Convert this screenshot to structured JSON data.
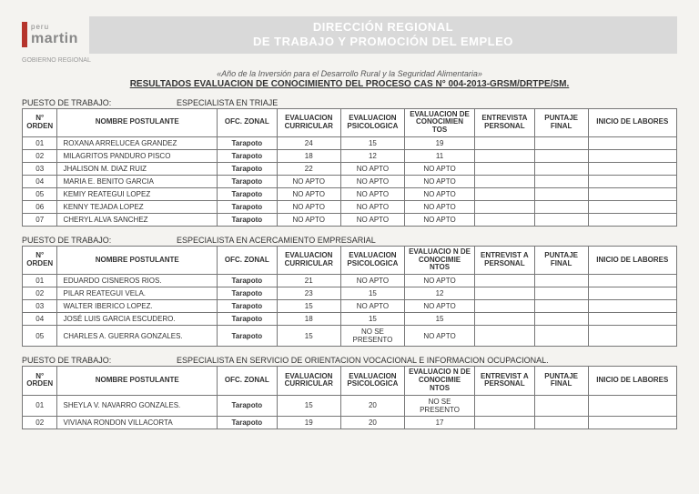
{
  "logo": {
    "small": "peru",
    "big": "martin",
    "sub": "GOBIERNO REGIONAL"
  },
  "banner": {
    "line1": "DIRECCIÓN REGIONAL",
    "line2": "DE TRABAJO Y PROMOCIÓN DEL EMPLEO"
  },
  "year_line": "«Año de la Inversión para el Desarrollo Rural y la Seguridad Alimentaria»",
  "results_line": "RESULTADOS  EVALUACION DE CONOCIMIENTO  DEL PROCESO CAS N° 004-2013-GRSM/DRTPE/SM.",
  "section_label": "PUESTO DE TRABAJO:",
  "headers": {
    "orden": "N° ORDEN",
    "nombre": "NOMBRE POSTULANTE",
    "zonal": "OFC. ZONAL",
    "curricular": "EVALUACION CURRICULAR",
    "psicologica": "EVALUACION PSICOLOGICA",
    "conocimientos": "EVALUACION DE CONOCIMIEN TOS",
    "conocimientos2": "EVALUACIO N DE CONOCIMIE NTOS",
    "entrevista": "ENTREVISTA PERSONAL",
    "entrevista2": "ENTREVIST A PERSONAL",
    "puntaje": "PUNTAJE FINAL",
    "inicio": "INICIO DE LABORES"
  },
  "sections": [
    {
      "title": "ESPECIALISTA EN TRIAJE",
      "header_variant": 0,
      "rows": [
        {
          "n": "01",
          "nombre": "ROXANA ARRELUCEA GRANDEZ",
          "zone": "Tarapoto",
          "cur": "24",
          "psi": "15",
          "con": "19"
        },
        {
          "n": "02",
          "nombre": "MILAGRITOS PANDURO PISCO",
          "zone": "Tarapoto",
          "cur": "18",
          "psi": "12",
          "con": "11"
        },
        {
          "n": "03",
          "nombre": "JHALISON M. DIAZ RUIZ",
          "zone": "Tarapoto",
          "cur": "22",
          "psi": "NO APTO",
          "con": "NO APTO"
        },
        {
          "n": "04",
          "nombre": "MARIA E. BENITO GARCIA",
          "zone": "Tarapoto",
          "cur": "NO APTO",
          "psi": "NO APTO",
          "con": "NO APTO"
        },
        {
          "n": "05",
          "nombre": "KEMIY REATEGUI LOPEZ",
          "zone": "Tarapoto",
          "cur": "NO APTO",
          "psi": "NO APTO",
          "con": "NO APTO"
        },
        {
          "n": "06",
          "nombre": "KENNY TEJADA LOPEZ",
          "zone": "Tarapoto",
          "cur": "NO APTO",
          "psi": "NO APTO",
          "con": "NO APTO"
        },
        {
          "n": "07",
          "nombre": "CHERYL ALVA SANCHEZ",
          "zone": "Tarapoto",
          "cur": "NO APTO",
          "psi": "NO APTO",
          "con": "NO APTO"
        }
      ]
    },
    {
      "title": "ESPECIALISTA EN ACERCAMIENTO EMPRESARIAL",
      "header_variant": 1,
      "rows": [
        {
          "n": "01",
          "nombre": "EDUARDO CISNEROS RIOS.",
          "zone": "Tarapoto",
          "cur": "21",
          "psi": "NO APTO",
          "con": "NO APTO"
        },
        {
          "n": "02",
          "nombre": "PILAR REATEGUI VELA.",
          "zone": "Tarapoto",
          "cur": "23",
          "psi": "15",
          "con": "12"
        },
        {
          "n": "03",
          "nombre": "WALTER IBERICO LOPEZ.",
          "zone": "Tarapoto",
          "cur": "15",
          "psi": "NO APTO",
          "con": "NO APTO"
        },
        {
          "n": "04",
          "nombre": "JOSÉ LUIS GARCIA ESCUDERO.",
          "zone": "Tarapoto",
          "cur": "18",
          "psi": "15",
          "con": "15"
        },
        {
          "n": "05",
          "nombre": "CHARLES A. GUERRA GONZALES.",
          "zone": "Tarapoto",
          "cur": "15",
          "psi": "NO SE PRESENTO",
          "con": "NO APTO"
        }
      ]
    },
    {
      "title": "ESPECIALISTA EN SERVICIO DE ORIENTACION VOCACIONAL E INFORMACION OCUPACIONAL.",
      "header_variant": 1,
      "rows": [
        {
          "n": "01",
          "nombre": "SHEYLA V. NAVARRO GONZALES.",
          "zone": "Tarapoto",
          "cur": "15",
          "psi": "20",
          "con": "NO SE PRESENTO"
        },
        {
          "n": "02",
          "nombre": "VIVIANA RONDON VILLACORTA",
          "zone": "Tarapoto",
          "cur": "19",
          "psi": "20",
          "con": "17"
        }
      ]
    }
  ]
}
